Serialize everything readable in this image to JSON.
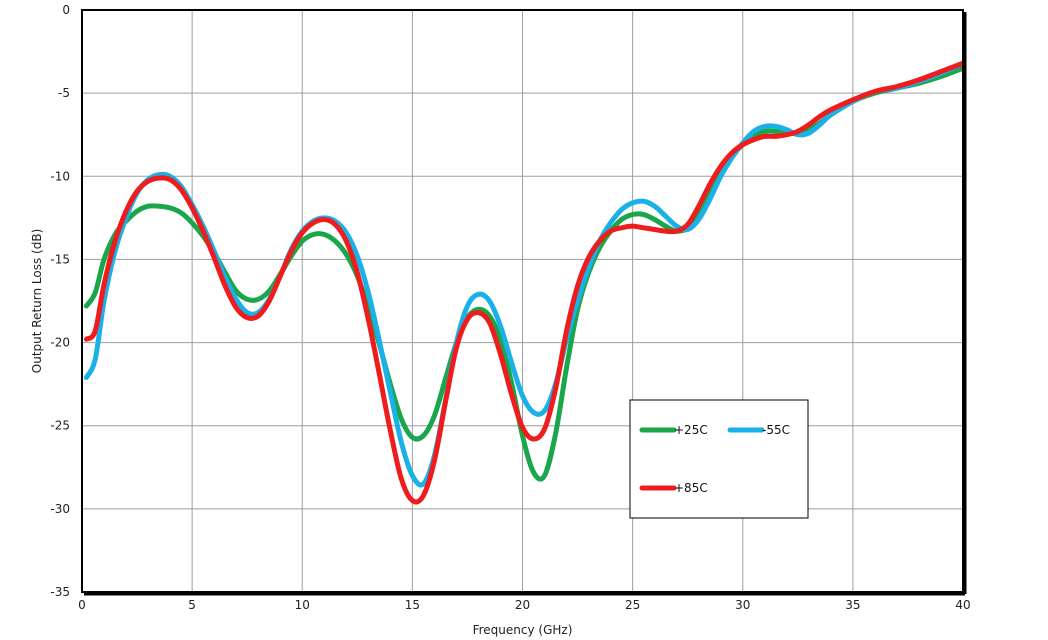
{
  "chart_data": {
    "type": "line",
    "xlabel": "Frequency (GHz)",
    "ylabel": "Output Return Loss (dB)",
    "xlim": [
      0,
      40
    ],
    "ylim": [
      -35,
      0
    ],
    "xticks": [
      0,
      5,
      10,
      15,
      20,
      25,
      30,
      35,
      40
    ],
    "yticks": [
      0,
      -5,
      -10,
      -15,
      -20,
      -25,
      -30,
      -35
    ],
    "grid": true,
    "legend_position": "lower-right",
    "series": [
      {
        "name": "+25C",
        "color": "#1aa64a",
        "x": [
          0.2,
          0.6,
          1,
          1.5,
          2,
          2.5,
          3,
          3.5,
          4,
          4.5,
          5,
          5.5,
          6,
          6.5,
          7,
          7.5,
          8,
          8.5,
          9,
          9.5,
          10,
          10.5,
          11,
          11.5,
          12,
          12.5,
          13,
          13.5,
          14,
          14.5,
          15,
          15.5,
          16,
          16.5,
          17,
          17.5,
          18,
          18.5,
          19,
          19.5,
          20,
          20.5,
          21,
          21.5,
          22,
          22.5,
          23,
          23.5,
          24,
          24.5,
          25,
          25.5,
          26,
          26.5,
          27,
          27.5,
          28,
          28.5,
          29,
          29.5,
          30,
          30.5,
          31,
          31.5,
          32,
          32.5,
          33,
          33.5,
          34,
          35,
          36,
          37,
          38,
          39,
          40
        ],
        "y": [
          -17.8,
          -17,
          -15,
          -13.5,
          -12.7,
          -12.1,
          -11.8,
          -11.8,
          -11.9,
          -12.2,
          -12.8,
          -13.6,
          -14.6,
          -15.8,
          -16.9,
          -17.4,
          -17.4,
          -16.9,
          -15.9,
          -14.8,
          -13.9,
          -13.5,
          -13.5,
          -13.9,
          -14.7,
          -16,
          -17.9,
          -20.1,
          -22.5,
          -24.6,
          -25.7,
          -25.6,
          -24.4,
          -22.2,
          -20,
          -18.5,
          -18,
          -18.4,
          -19.8,
          -22.4,
          -25.6,
          -27.8,
          -28,
          -25.5,
          -21.5,
          -18,
          -15.8,
          -14.3,
          -13.3,
          -12.6,
          -12.3,
          -12.3,
          -12.6,
          -13,
          -13.3,
          -13.1,
          -12.1,
          -10.9,
          -9.7,
          -8.8,
          -8.1,
          -7.6,
          -7.3,
          -7.3,
          -7.4,
          -7.4,
          -7.2,
          -6.8,
          -6.3,
          -5.5,
          -5,
          -4.7,
          -4.4,
          -4,
          -3.5
        ]
      },
      {
        "name": "-55C",
        "color": "#1ab0e8",
        "x": [
          0.2,
          0.6,
          1,
          1.5,
          2,
          2.5,
          3,
          3.5,
          4,
          4.5,
          5,
          5.5,
          6,
          6.5,
          7,
          7.5,
          8,
          8.5,
          9,
          9.5,
          10,
          10.5,
          11,
          11.5,
          12,
          12.5,
          13,
          13.5,
          14,
          14.5,
          15,
          15.5,
          16,
          16.5,
          17,
          17.5,
          18,
          18.5,
          19,
          19.5,
          20,
          20.5,
          21,
          21.5,
          22,
          22.5,
          23,
          23.5,
          24,
          24.5,
          25,
          25.5,
          26,
          26.5,
          27,
          27.5,
          28,
          28.5,
          29,
          29.5,
          30,
          30.5,
          31,
          31.5,
          32,
          32.5,
          33,
          33.5,
          34,
          35,
          36,
          37,
          38,
          39,
          40
        ],
        "y": [
          -22.1,
          -21,
          -17.5,
          -14.5,
          -12.5,
          -11,
          -10.2,
          -9.9,
          -10,
          -10.6,
          -11.7,
          -13,
          -14.5,
          -16.1,
          -17.4,
          -18.2,
          -18.2,
          -17.4,
          -16,
          -14.4,
          -13.3,
          -12.7,
          -12.5,
          -12.7,
          -13.4,
          -14.8,
          -17,
          -19.9,
          -23,
          -26,
          -28,
          -28.5,
          -26.8,
          -23.5,
          -20,
          -17.8,
          -17.1,
          -17.5,
          -19,
          -21.2,
          -23.2,
          -24.2,
          -24.1,
          -22.5,
          -19.8,
          -17.5,
          -15.5,
          -13.9,
          -12.8,
          -12,
          -11.6,
          -11.5,
          -11.8,
          -12.4,
          -13,
          -13.2,
          -12.6,
          -11.4,
          -10,
          -8.9,
          -8,
          -7.3,
          -7,
          -7,
          -7.2,
          -7.5,
          -7.4,
          -6.9,
          -6.3,
          -5.5,
          -4.9,
          -4.7,
          -4.3,
          -3.8,
          -3.2
        ]
      },
      {
        "name": "+85C",
        "color": "#ee1c1c",
        "x": [
          0.2,
          0.6,
          1,
          1.5,
          2,
          2.5,
          3,
          3.5,
          4,
          4.5,
          5,
          5.5,
          6,
          6.5,
          7,
          7.5,
          8,
          8.5,
          9,
          9.5,
          10,
          10.5,
          11,
          11.5,
          12,
          12.5,
          13,
          13.5,
          14,
          14.5,
          15,
          15.5,
          16,
          16.5,
          17,
          17.5,
          18,
          18.5,
          19,
          19.5,
          20,
          20.5,
          21,
          21.5,
          22,
          22.5,
          23,
          23.5,
          24,
          24.5,
          25,
          25.5,
          26,
          26.5,
          27,
          27.5,
          28,
          28.5,
          29,
          29.5,
          30,
          30.5,
          31,
          31.5,
          32,
          32.5,
          33,
          33.5,
          34,
          35,
          36,
          37,
          38,
          39,
          40
        ],
        "y": [
          -19.8,
          -19.3,
          -16.5,
          -13.9,
          -12.1,
          -10.9,
          -10.3,
          -10.1,
          -10.2,
          -10.8,
          -11.9,
          -13.3,
          -14.9,
          -16.6,
          -17.9,
          -18.5,
          -18.4,
          -17.5,
          -16,
          -14.5,
          -13.4,
          -12.8,
          -12.6,
          -12.9,
          -13.9,
          -15.8,
          -18.6,
          -21.9,
          -25.3,
          -28.2,
          -29.5,
          -29.2,
          -27.1,
          -23.6,
          -20.3,
          -18.6,
          -18.2,
          -18.8,
          -20.7,
          -23.1,
          -25.1,
          -25.8,
          -25.2,
          -22.8,
          -19.3,
          -16.6,
          -14.9,
          -13.9,
          -13.3,
          -13.1,
          -13,
          -13.1,
          -13.2,
          -13.3,
          -13.3,
          -12.9,
          -11.8,
          -10.5,
          -9.4,
          -8.6,
          -8.1,
          -7.8,
          -7.6,
          -7.6,
          -7.5,
          -7.3,
          -6.9,
          -6.4,
          -6,
          -5.4,
          -4.9,
          -4.6,
          -4.2,
          -3.7,
          -3.2
        ]
      }
    ]
  }
}
